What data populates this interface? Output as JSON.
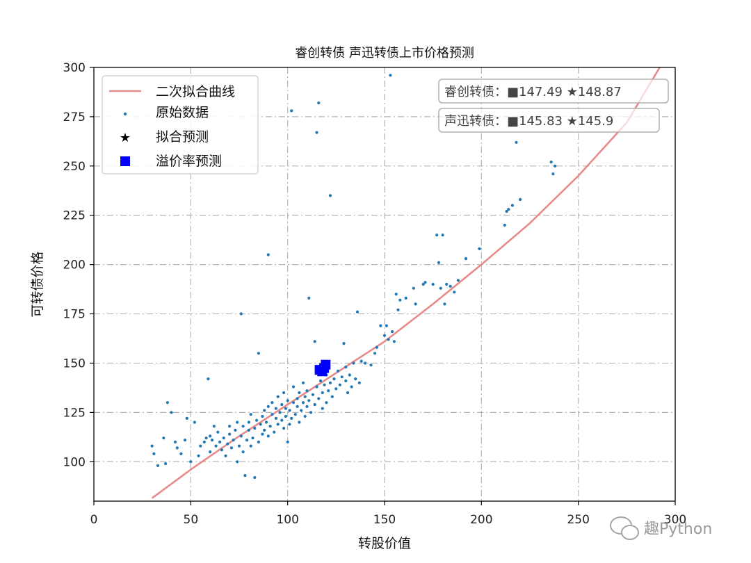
{
  "chart_data": {
    "type": "scatter",
    "title": "睿创转债 声迅转债上市价格预测",
    "xlabel": "转股价值",
    "ylabel": "可转债价格",
    "xlim": [
      0,
      300
    ],
    "ylim": [
      80,
      300
    ],
    "xticks": [
      "0",
      "50",
      "100",
      "150",
      "200",
      "250",
      "300"
    ],
    "yticks": [
      "100",
      "125",
      "150",
      "175",
      "200",
      "225",
      "250",
      "275",
      "300"
    ],
    "grid": true,
    "legend_position": "top-left",
    "legend": [
      {
        "label": "二次拟合曲线",
        "kind": "line",
        "color": "#e88a8a"
      },
      {
        "label": "原始数据",
        "kind": "dot",
        "color": "#1f77b4"
      },
      {
        "label": "拟合预测",
        "kind": "star",
        "color": "#000000"
      },
      {
        "label": "溢价率预测",
        "kind": "square",
        "color": "#0000ff"
      }
    ],
    "fit_curve": {
      "name": "二次拟合曲线",
      "x": [
        30,
        50,
        75,
        100,
        125,
        150,
        175,
        200,
        225,
        250,
        275,
        292
      ],
      "y": [
        81.5,
        96,
        113,
        129,
        145,
        161,
        180,
        200,
        221,
        245,
        272,
        300
      ]
    },
    "raw_data": {
      "name": "原始数据",
      "color": "#1f77b4",
      "points": [
        [
          30,
          108
        ],
        [
          31,
          104
        ],
        [
          33,
          98
        ],
        [
          36,
          112
        ],
        [
          37,
          99
        ],
        [
          38,
          130
        ],
        [
          40,
          125
        ],
        [
          42,
          110
        ],
        [
          43,
          107
        ],
        [
          45,
          104
        ],
        [
          47,
          111
        ],
        [
          48,
          122
        ],
        [
          50,
          100
        ],
        [
          52,
          120
        ],
        [
          54,
          103
        ],
        [
          55,
          108
        ],
        [
          57,
          110
        ],
        [
          58,
          112
        ],
        [
          59,
          142
        ],
        [
          60,
          105
        ],
        [
          60,
          113
        ],
        [
          61,
          111
        ],
        [
          62,
          118
        ],
        [
          63,
          108
        ],
        [
          64,
          115
        ],
        [
          65,
          110
        ],
        [
          66,
          106
        ],
        [
          67,
          112
        ],
        [
          68,
          103
        ],
        [
          69,
          109
        ],
        [
          70,
          114
        ],
        [
          70,
          118
        ],
        [
          71,
          107
        ],
        [
          72,
          111
        ],
        [
          73,
          116
        ],
        [
          74,
          100
        ],
        [
          74,
          120
        ],
        [
          75,
          108
        ],
        [
          76,
          113
        ],
        [
          76,
          175
        ],
        [
          77,
          118
        ],
        [
          77,
          105
        ],
        [
          78,
          93
        ],
        [
          79,
          111
        ],
        [
          80,
          116
        ],
        [
          80,
          120
        ],
        [
          81,
          108
        ],
        [
          81,
          124
        ],
        [
          82,
          112
        ],
        [
          83,
          92
        ],
        [
          83,
          117
        ],
        [
          84,
          121
        ],
        [
          85,
          155
        ],
        [
          85,
          110
        ],
        [
          86,
          119
        ],
        [
          87,
          114
        ],
        [
          87,
          123
        ],
        [
          88,
          116
        ],
        [
          88,
          126
        ],
        [
          89,
          120
        ],
        [
          90,
          113
        ],
        [
          90,
          128
        ],
        [
          90,
          205
        ],
        [
          91,
          118
        ],
        [
          92,
          124
        ],
        [
          92,
          130
        ],
        [
          93,
          115
        ],
        [
          94,
          122
        ],
        [
          94,
          127
        ],
        [
          95,
          119
        ],
        [
          95,
          133
        ],
        [
          96,
          125
        ],
        [
          97,
          121
        ],
        [
          97,
          129
        ],
        [
          98,
          117
        ],
        [
          98,
          135
        ],
        [
          99,
          123
        ],
        [
          99,
          127
        ],
        [
          100,
          110
        ],
        [
          100,
          131
        ],
        [
          101,
          119
        ],
        [
          101,
          126
        ],
        [
          102,
          278
        ],
        [
          102,
          122
        ],
        [
          103,
          130
        ],
        [
          103,
          138
        ],
        [
          104,
          124
        ],
        [
          105,
          128
        ],
        [
          105,
          132
        ],
        [
          106,
          120
        ],
        [
          106,
          135
        ],
        [
          107,
          126
        ],
        [
          108,
          130
        ],
        [
          108,
          140
        ],
        [
          109,
          123
        ],
        [
          109,
          133
        ],
        [
          110,
          128
        ],
        [
          110,
          136
        ],
        [
          111,
          183
        ],
        [
          111,
          131
        ],
        [
          112,
          125
        ],
        [
          113,
          134
        ],
        [
          114,
          161
        ],
        [
          114,
          129
        ],
        [
          115,
          138
        ],
        [
          115,
          267
        ],
        [
          116,
          282
        ],
        [
          116,
          132
        ],
        [
          117,
          141
        ],
        [
          118,
          127
        ],
        [
          118,
          135
        ],
        [
          119,
          139
        ],
        [
          120,
          130
        ],
        [
          120,
          144
        ],
        [
          121,
          136
        ],
        [
          122,
          235
        ],
        [
          122,
          140
        ],
        [
          123,
          133
        ],
        [
          124,
          142
        ],
        [
          125,
          137
        ],
        [
          126,
          146
        ],
        [
          127,
          139
        ],
        [
          128,
          143
        ],
        [
          129,
          160
        ],
        [
          130,
          141
        ],
        [
          130,
          148
        ],
        [
          131,
          135
        ],
        [
          132,
          144
        ],
        [
          133,
          138
        ],
        [
          134,
          150
        ],
        [
          135,
          142
        ],
        [
          136,
          176
        ],
        [
          137,
          140
        ],
        [
          138,
          151
        ],
        [
          140,
          150
        ],
        [
          143,
          149
        ],
        [
          145,
          155
        ],
        [
          146,
          158
        ],
        [
          148,
          169
        ],
        [
          150,
          164
        ],
        [
          151,
          169
        ],
        [
          152,
          162
        ],
        [
          153,
          296
        ],
        [
          154,
          166
        ],
        [
          155,
          161
        ],
        [
          156,
          185
        ],
        [
          157,
          177
        ],
        [
          158,
          182
        ],
        [
          161,
          183
        ],
        [
          165,
          188
        ],
        [
          166,
          180
        ],
        [
          170,
          190
        ],
        [
          171,
          191
        ],
        [
          175,
          190
        ],
        [
          177,
          215
        ],
        [
          178,
          201
        ],
        [
          179,
          188
        ],
        [
          180,
          215
        ],
        [
          181,
          180
        ],
        [
          182,
          190
        ],
        [
          184,
          189
        ],
        [
          186,
          186
        ],
        [
          188,
          192
        ],
        [
          192,
          203
        ],
        [
          199,
          208
        ],
        [
          212,
          220
        ],
        [
          213,
          227
        ],
        [
          214,
          228
        ],
        [
          216,
          230
        ],
        [
          218,
          262
        ],
        [
          220,
          233
        ],
        [
          236,
          252
        ],
        [
          237,
          246
        ],
        [
          238,
          250
        ]
      ]
    },
    "fit_predictions": {
      "name": "拟合预测",
      "points": [
        [
          118.8,
          148.87
        ],
        [
          117.8,
          145.9
        ]
      ]
    },
    "premium_predictions": {
      "name": "溢价率预测",
      "points": [
        [
          118.8,
          147.49
        ],
        [
          117.8,
          145.83
        ],
        [
          116.5,
          146.6
        ],
        [
          119.6,
          149.2
        ]
      ]
    },
    "annotations": [
      {
        "text": "睿创转债：■147.49 ★148.87"
      },
      {
        "text": "声迅转债：■145.83 ★145.9"
      }
    ],
    "watermark": "趣Python"
  }
}
